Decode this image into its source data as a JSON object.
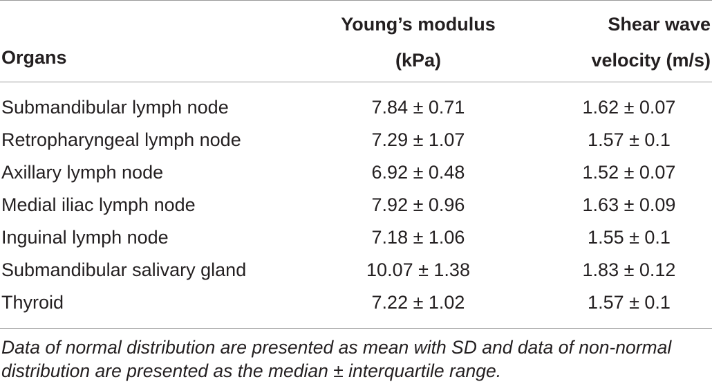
{
  "table": {
    "headers": {
      "organs": "Organs",
      "young_line1": "Young’s modulus",
      "young_line2": "(kPa)",
      "shear_line1": "Shear wave",
      "shear_line2": "velocity (m/s)"
    },
    "rows": [
      {
        "organ": "Submandibular lymph node",
        "young": "7.84 ± 0.71",
        "shear": "1.62 ± 0.07"
      },
      {
        "organ": "Retropharyngeal lymph node",
        "young": "7.29 ± 1.07",
        "shear": "1.57 ± 0.1"
      },
      {
        "organ": "Axillary lymph node",
        "young": "6.92 ± 0.48",
        "shear": "1.52 ± 0.07"
      },
      {
        "organ": "Medial iliac lymph node",
        "young": "7.92 ± 0.96",
        "shear": "1.63 ± 0.09"
      },
      {
        "organ": "Inguinal lymph node",
        "young": "7.18 ± 1.06",
        "shear": "1.55 ± 0.1"
      },
      {
        "organ": "Submandibular salivary gland",
        "young": "10.07 ± 1.38",
        "shear": "1.83 ± 0.12"
      },
      {
        "organ": "Thyroid",
        "young": "7.22 ± 1.02",
        "shear": "1.57 ± 0.1"
      }
    ],
    "footnote_line1": "Data of normal distribution are presented as mean with SD and data of non-normal",
    "footnote_line2": "distribution are presented as the median ± interquartile range."
  }
}
